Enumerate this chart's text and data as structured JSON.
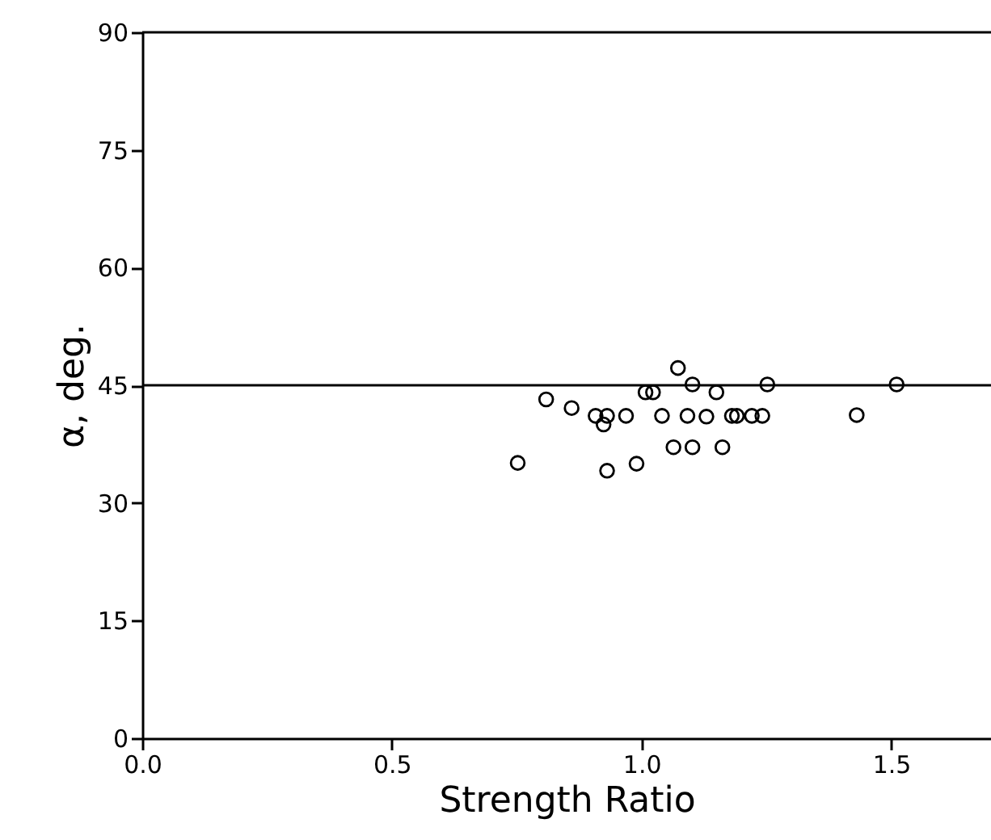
{
  "chart_data": {
    "type": "scatter",
    "xlabel": "Strength Ratio",
    "ylabel": "α, deg.",
    "x": [
      0.752,
      0.809,
      0.86,
      0.908,
      0.924,
      0.931,
      0.931,
      0.969,
      0.99,
      1.008,
      1.023,
      1.041,
      1.064,
      1.073,
      1.092,
      1.102,
      1.102,
      1.13,
      1.15,
      1.162,
      1.181,
      1.191,
      1.221,
      1.242,
      1.252,
      1.431,
      1.511
    ],
    "series": [
      {
        "color": "#000000",
        "values": [
          35.1,
          43.2,
          42.1,
          41.1,
          40.0,
          41.1,
          34.1,
          41.1,
          35.0,
          44.1,
          44.1,
          41.1,
          37.1,
          47.2,
          41.1,
          45.1,
          37.1,
          41.0,
          44.1,
          37.1,
          41.1,
          41.1,
          41.1,
          41.1,
          45.1,
          41.2,
          45.1
        ]
      }
    ],
    "xlim": [
      0,
      1.7
    ],
    "xticks": [
      {
        "value": 0,
        "label": "0.0"
      },
      0.5,
      {
        "value": 1,
        "label": "1.0"
      },
      1.5
    ],
    "ylim": [
      0,
      90
    ],
    "yticks": [
      0,
      15,
      30,
      45,
      60,
      75,
      90
    ],
    "ref_lines": [
      {
        "axis": "y",
        "value": 45,
        "color": "#000000"
      }
    ],
    "marker": "circle",
    "grid": false
  }
}
